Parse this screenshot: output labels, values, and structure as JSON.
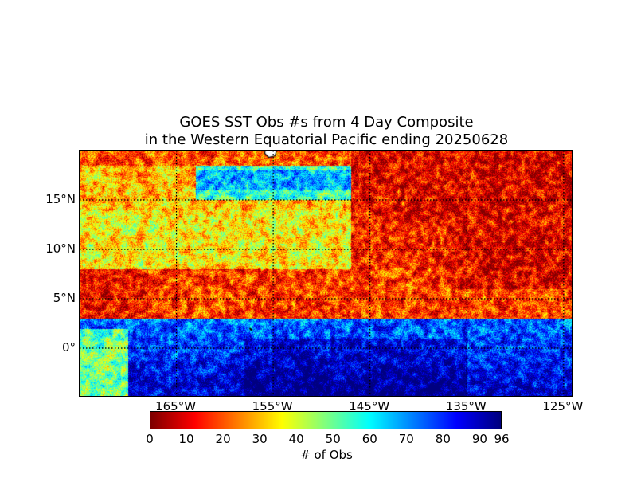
{
  "title_line1": "GOES SST Obs #s from 4 Day Composite",
  "title_line2": "in the Western Equatorial Pacific ending 20250628",
  "map": {
    "lon_range": [
      -175,
      -124
    ],
    "lat_range": [
      -5,
      20
    ],
    "lat_ticks": [
      {
        "value": 15,
        "label": "15°N"
      },
      {
        "value": 10,
        "label": "10°N"
      },
      {
        "value": 5,
        "label": "5°N"
      },
      {
        "value": 0,
        "label": "0°"
      }
    ],
    "lon_ticks": [
      {
        "value": -165,
        "label": "165°W"
      },
      {
        "value": -155,
        "label": "155°W"
      },
      {
        "value": -145,
        "label": "145°W"
      },
      {
        "value": -135,
        "label": "135°W"
      },
      {
        "value": -125,
        "label": "125°W"
      }
    ],
    "gridlines": "dotted",
    "land_color": "#ffffff"
  },
  "colorbar": {
    "colormap": "jet_reversed",
    "min": 0,
    "max": 96,
    "ticks": [
      {
        "value": 0,
        "label": "0"
      },
      {
        "value": 10,
        "label": "10"
      },
      {
        "value": 20,
        "label": "20"
      },
      {
        "value": 30,
        "label": "30"
      },
      {
        "value": 40,
        "label": "40"
      },
      {
        "value": 50,
        "label": "50"
      },
      {
        "value": 60,
        "label": "60"
      },
      {
        "value": 70,
        "label": "70"
      },
      {
        "value": 80,
        "label": "80"
      },
      {
        "value": 90,
        "label": "90"
      },
      {
        "value": 96,
        "label": "96"
      }
    ],
    "label": "# of Obs"
  }
}
